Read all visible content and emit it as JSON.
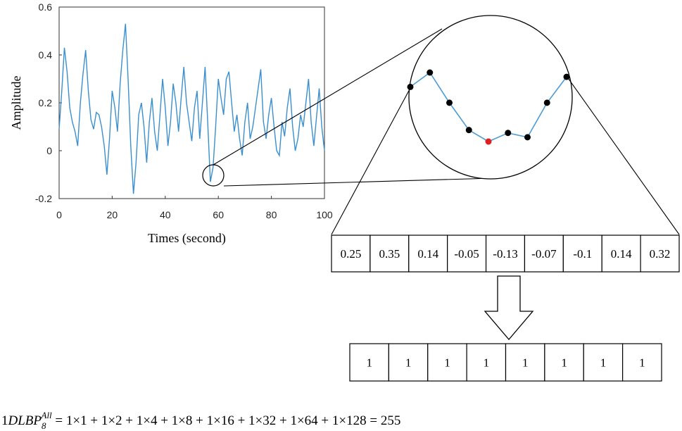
{
  "chart_data": {
    "type": "line",
    "xlabel": "Times (second)",
    "ylabel": "Amplitude",
    "xlim": [
      0,
      100
    ],
    "ylim": [
      -0.2,
      0.6
    ],
    "x_ticks": [
      "0",
      "20",
      "40",
      "60",
      "80",
      "100"
    ],
    "y_ticks": [
      "0.6",
      "0.4",
      "0.2",
      "0",
      "-0.2"
    ],
    "color": "#3a8fcf",
    "series": [
      {
        "x": [
          0,
          1,
          2,
          3,
          4,
          5,
          6,
          7,
          8,
          9,
          10,
          11,
          12,
          13,
          14,
          15,
          16,
          17,
          18,
          19,
          20,
          21,
          22,
          23,
          24,
          25,
          26,
          27,
          28,
          29,
          30,
          31,
          32,
          33,
          34,
          35,
          36,
          37,
          38,
          39,
          40,
          41,
          42,
          43,
          44,
          45,
          46,
          47,
          48,
          49,
          50,
          51,
          52,
          53,
          54,
          55,
          56,
          57,
          58,
          59,
          60,
          61,
          62,
          63,
          64,
          65,
          66,
          67,
          68,
          69,
          70,
          71,
          72,
          73,
          74,
          75,
          76,
          77,
          78,
          79,
          80,
          81,
          82,
          83,
          84,
          85,
          86,
          87,
          88,
          89,
          90,
          91,
          92,
          93,
          94,
          95,
          96,
          97,
          98,
          99,
          100
        ],
        "y": [
          0.09,
          0.25,
          0.43,
          0.33,
          0.18,
          0.12,
          0.08,
          0.02,
          0.2,
          0.32,
          0.42,
          0.25,
          0.13,
          0.09,
          0.16,
          0.15,
          0.1,
          0.02,
          -0.1,
          0.05,
          0.25,
          0.18,
          0.08,
          0.28,
          0.42,
          0.53,
          0.3,
          0.02,
          -0.18,
          -0.05,
          0.15,
          0.2,
          0.1,
          -0.05,
          0.12,
          0.22,
          0.08,
          0.0,
          0.15,
          0.3,
          0.18,
          0.02,
          0.12,
          0.28,
          0.2,
          0.08,
          0.22,
          0.35,
          0.2,
          0.12,
          0.04,
          0.18,
          0.25,
          0.05,
          0.2,
          0.35,
          0.12,
          -0.13,
          -0.07,
          0.1,
          0.3,
          0.22,
          0.15,
          0.3,
          0.33,
          0.2,
          0.08,
          0.15,
          0.05,
          -0.02,
          0.12,
          0.2,
          0.05,
          0.1,
          0.18,
          0.26,
          0.34,
          0.12,
          0.05,
          0.15,
          0.22,
          0.1,
          0.0,
          -0.02,
          0.12,
          0.06,
          0.18,
          0.26,
          0.1,
          0.0,
          0.05,
          0.15,
          0.1,
          0.2,
          0.3,
          0.12,
          0.02,
          0.14,
          0.26,
          0.1,
          0.0
        ]
      }
    ]
  },
  "zoom": {
    "values": [
      0.25,
      0.35,
      0.14,
      -0.05,
      -0.13,
      -0.07,
      -0.1,
      0.14,
      0.32
    ],
    "center_index": 4,
    "center_color": "#e02020",
    "point_color": "#000000",
    "line_color": "#4a9bd6"
  },
  "value_cells": [
    "0.25",
    "0.35",
    "0.14",
    "-0.05",
    "-0.13",
    "-0.07",
    "-0.1",
    "0.14",
    "0.32"
  ],
  "center_cell_index": 4,
  "center_text_color": "#e02020",
  "binary_cells": [
    "1",
    "1",
    "1",
    "1",
    "1",
    "1",
    "1",
    "1"
  ],
  "equation": {
    "prefix": "1",
    "name": "DLBP",
    "subscript": "8",
    "superscript": "All",
    "rhs": " = 1×1 + 1×2 + 1×4 + 1×8 + 1×16 + 1×32 + 1×64 + 1×128 = 255"
  }
}
